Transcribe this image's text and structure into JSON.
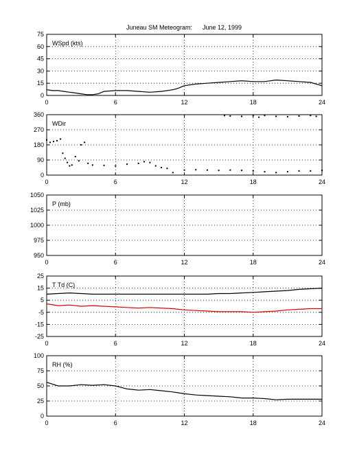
{
  "title": "Juneau SM Meteogram:      June 12, 1999",
  "colors": {
    "line": "#000000",
    "dewpoint": "#dd0000",
    "background": "#ffffff"
  },
  "chart_data": [
    {
      "type": "line",
      "label": "WSpd (kts)",
      "xlim": [
        0,
        24
      ],
      "ylim": [
        0,
        75
      ],
      "xticks": [
        0,
        6,
        12,
        18,
        24
      ],
      "yticks": [
        0,
        15,
        30,
        45,
        60,
        75
      ],
      "grid": true,
      "series": [
        {
          "x": [
            0,
            0.5,
            1,
            1.5,
            2,
            2.5,
            3,
            3.5,
            4,
            4.5,
            5,
            6,
            7,
            8,
            9,
            10,
            11,
            11.5,
            12,
            13,
            14,
            15,
            16,
            17,
            18,
            19,
            20,
            21,
            22,
            23,
            24
          ],
          "y": [
            7,
            6,
            6,
            5,
            4,
            3,
            2,
            1,
            1,
            2,
            5,
            6,
            6,
            5,
            4,
            5,
            7,
            9,
            12,
            14,
            15,
            16,
            17,
            18,
            17,
            17,
            19,
            18,
            17,
            16,
            12
          ]
        }
      ]
    },
    {
      "type": "scatter",
      "label": "WDir",
      "xlim": [
        0,
        24
      ],
      "ylim": [
        0,
        360
      ],
      "xticks": [
        0,
        6,
        12,
        18,
        24
      ],
      "yticks": [
        0,
        90,
        180,
        270,
        360
      ],
      "grid": true,
      "series": [
        {
          "x": [
            0,
            0.3,
            0.6,
            0.9,
            1.2,
            1.4,
            1.6,
            1.8,
            2.0,
            2.2,
            2.5,
            2.8,
            3.0,
            3.3,
            3.6,
            4,
            5,
            6,
            7,
            8,
            8.5,
            9,
            9.5,
            10,
            10.5,
            11,
            12,
            13,
            14,
            15,
            16,
            17,
            18,
            19,
            20,
            21,
            22,
            23,
            24
          ],
          "y": [
            210,
            195,
            200,
            205,
            215,
            130,
            100,
            75,
            55,
            60,
            110,
            85,
            180,
            195,
            70,
            60,
            58,
            55,
            65,
            70,
            80,
            75,
            55,
            45,
            40,
            15,
            30,
            32,
            30,
            28,
            30,
            28,
            25,
            20,
            15,
            20,
            25,
            25,
            28
          ]
        },
        {
          "x": [
            15.5,
            16,
            17,
            18,
            18.5,
            19,
            20,
            21,
            22,
            23,
            23.5
          ],
          "y": [
            355,
            352,
            350,
            355,
            345,
            355,
            350,
            348,
            352,
            355,
            350
          ]
        }
      ]
    },
    {
      "type": "line",
      "label": "P (mb)",
      "xlim": [
        0,
        24
      ],
      "ylim": [
        950,
        1050
      ],
      "xticks": [
        0,
        6,
        12,
        18,
        24
      ],
      "yticks": [
        950,
        975,
        1000,
        1025,
        1050
      ],
      "grid": true,
      "series": []
    },
    {
      "type": "line",
      "label": "T Td (C)",
      "xlim": [
        0,
        24
      ],
      "ylim": [
        -25,
        25
      ],
      "xticks": [
        0,
        6,
        12,
        18,
        24
      ],
      "yticks": [
        -25,
        -15,
        -5,
        5,
        15,
        25
      ],
      "grid": true,
      "series": [
        {
          "x": [
            0,
            1,
            2,
            3,
            4,
            5,
            6,
            7,
            8,
            9,
            10,
            11,
            12,
            13,
            14,
            15,
            16,
            17,
            18,
            19,
            20,
            21,
            22,
            23,
            24
          ],
          "y": [
            10,
            10.5,
            11,
            10.5,
            10,
            10,
            10,
            10,
            10,
            10,
            10,
            10,
            10,
            10,
            10,
            10.5,
            10.5,
            11,
            11.5,
            12,
            12.5,
            13,
            14,
            14.5,
            15
          ]
        },
        {
          "x": [
            0,
            1,
            2,
            3,
            4,
            5,
            6,
            7,
            8,
            9,
            10,
            11,
            12,
            13,
            14,
            15,
            16,
            17,
            18,
            19,
            20,
            21,
            22,
            23,
            24
          ],
          "y": [
            2,
            0.5,
            1,
            0,
            0.5,
            0,
            -0.5,
            -1,
            -1.5,
            -1,
            -1.5,
            -2,
            -3,
            -3.5,
            -4,
            -4.5,
            -4.5,
            -4.5,
            -5,
            -4.5,
            -4,
            -3,
            -2.5,
            -2,
            -2
          ]
        }
      ]
    },
    {
      "type": "line",
      "label": "RH (%)",
      "xlim": [
        0,
        24
      ],
      "ylim": [
        0,
        100
      ],
      "xticks": [
        0,
        6,
        12,
        18,
        24
      ],
      "yticks": [
        0,
        25,
        50,
        75,
        100
      ],
      "grid": true,
      "series": [
        {
          "x": [
            0,
            0.5,
            1,
            2,
            3,
            4,
            5,
            6,
            7,
            8,
            9,
            10,
            11,
            12,
            13,
            14,
            15,
            16,
            17,
            18,
            19,
            20,
            21,
            22,
            23,
            24
          ],
          "y": [
            56,
            53,
            50,
            50,
            52,
            51,
            52,
            50,
            45,
            43,
            44,
            42,
            40,
            37,
            35,
            34,
            33,
            32,
            30,
            30,
            29,
            27,
            28,
            28,
            28,
            28
          ]
        }
      ]
    }
  ]
}
